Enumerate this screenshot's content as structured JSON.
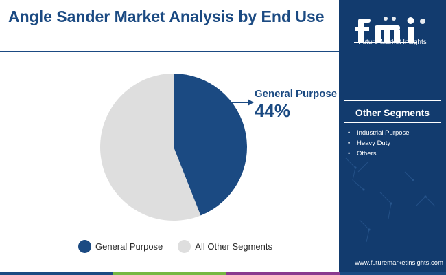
{
  "title": "Angle Sander Market Analysis by End Use",
  "chart_data": {
    "type": "pie",
    "categories": [
      "General Purpose",
      "All Other Segments"
    ],
    "values": [
      44,
      56
    ],
    "colors": [
      "#1b4a82",
      "#dedede"
    ],
    "legend_position": "bottom",
    "callout": {
      "label": "General Purpose",
      "value": "44%"
    }
  },
  "legend": [
    {
      "label": "General Purpose",
      "color": "#1b4a82"
    },
    {
      "label": "All Other Segments",
      "color": "#dedede"
    }
  ],
  "sidebar": {
    "logo_name": "fmi-logo",
    "logo_text": "Future Market Insights",
    "segments_heading": "Other Segments",
    "segments": [
      "Industrial Purpose",
      "Heavy Duty",
      "Others"
    ],
    "website": "www.futuremarketinsights.com"
  },
  "colors": {
    "brand_blue": "#1b4a82",
    "sidebar_blue": "#123b6e",
    "bottom_bar": [
      "#1b4a82",
      "#76b843",
      "#8a3a8f",
      "#1b4a82"
    ]
  }
}
